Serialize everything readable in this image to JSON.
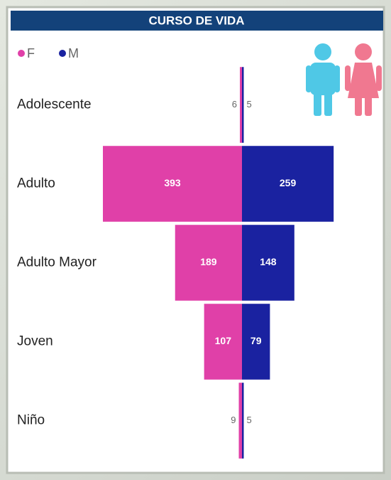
{
  "chart_data": {
    "type": "bar",
    "title": "CURSO DE VIDA",
    "categories": [
      "Adolescente",
      "Adulto",
      "Adulto Mayor",
      "Joven",
      "Niño"
    ],
    "series": [
      {
        "name": "F",
        "color": "#e040a8",
        "values": [
          6,
          393,
          189,
          107,
          9
        ]
      },
      {
        "name": "M",
        "color": "#1a22a0",
        "values": [
          5,
          259,
          148,
          79,
          5
        ]
      }
    ],
    "legend": "top-left"
  }
}
